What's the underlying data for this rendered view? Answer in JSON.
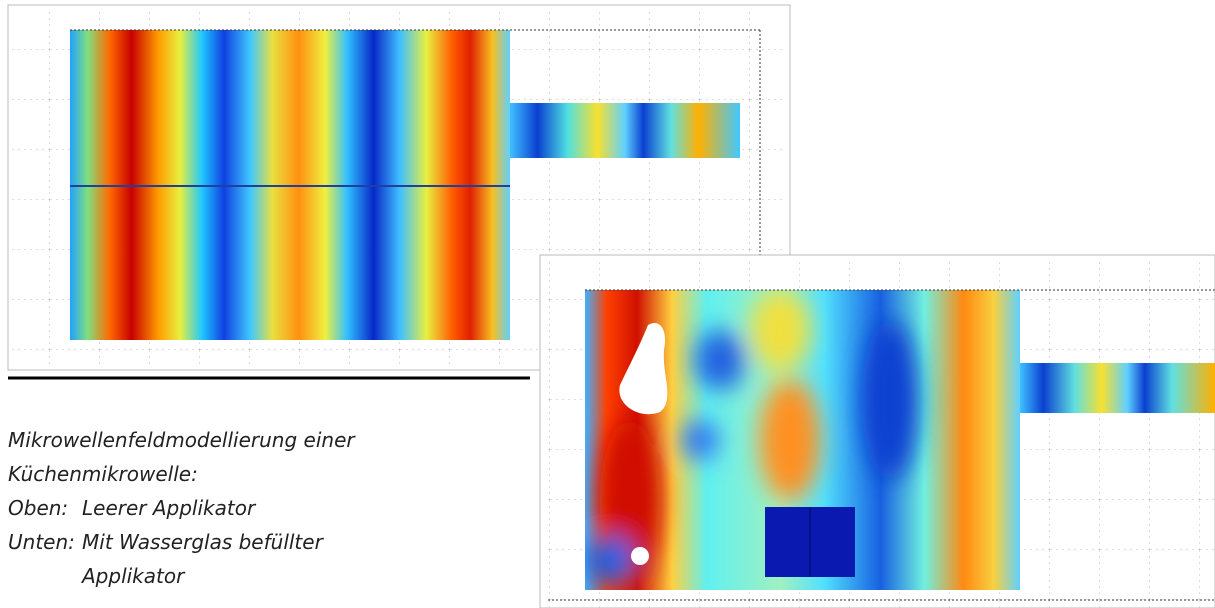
{
  "caption": {
    "title_lines": [
      "Mikrowellenfeldmodellierung einer",
      "Küchenmikrowelle:"
    ],
    "items": [
      {
        "label": "Oben:",
        "text": [
          "Leerer Applikator"
        ]
      },
      {
        "label": "Unten:",
        "text": [
          "Mit Wasserglas befüllter",
          "Applikator"
        ]
      }
    ]
  }
}
